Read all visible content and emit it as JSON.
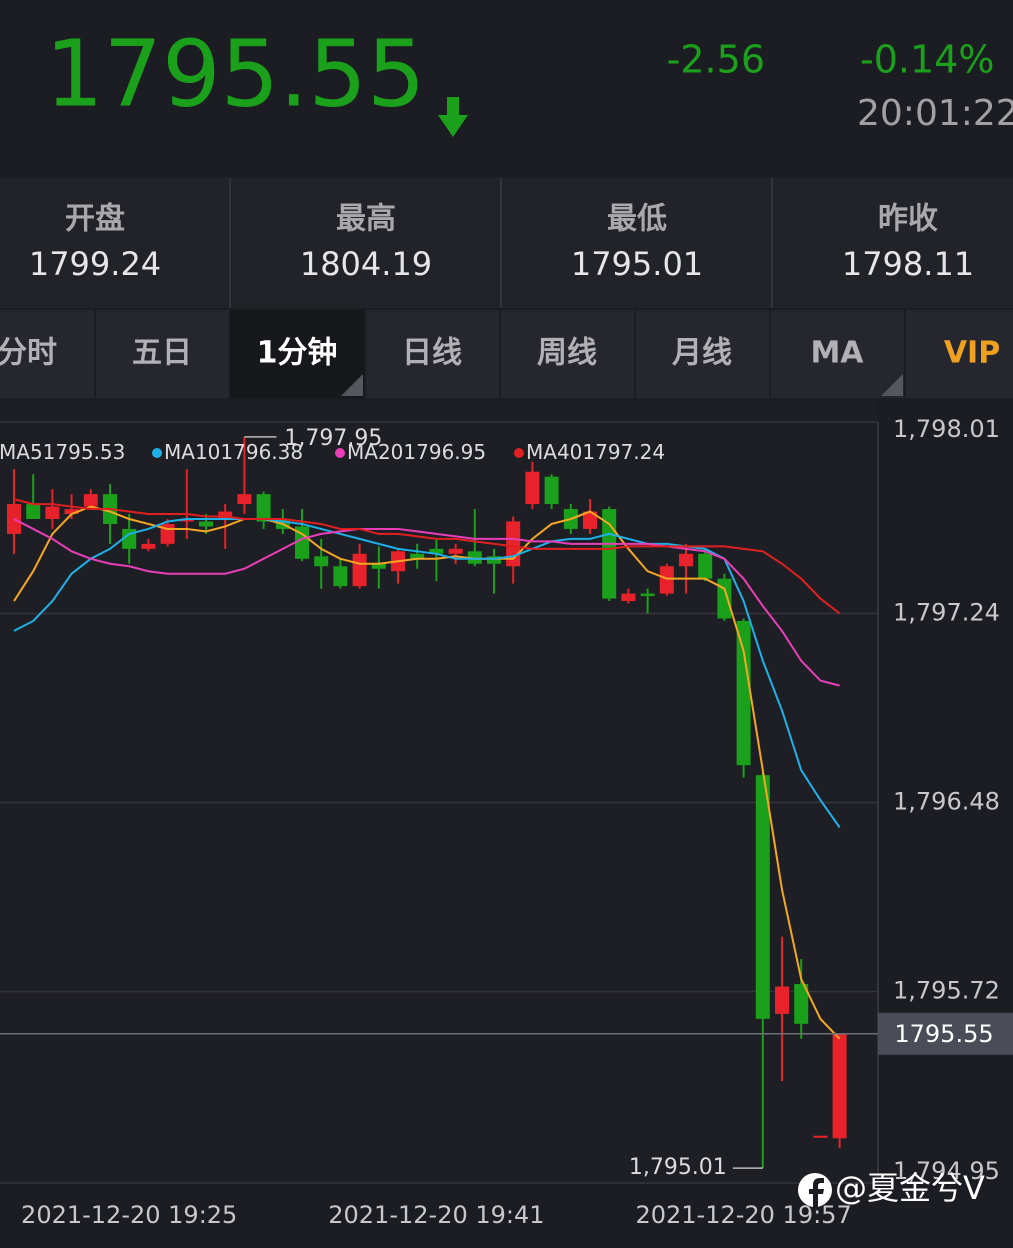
{
  "quote": {
    "price": "1795.55",
    "change": "-2.56",
    "percent": "-0.14%",
    "time": "20:01:22"
  },
  "stats": [
    {
      "label": "开盘",
      "value": "1799.24"
    },
    {
      "label": "最高",
      "value": "1804.19"
    },
    {
      "label": "最低",
      "value": "1795.01"
    },
    {
      "label": "昨收",
      "value": "1798.11"
    }
  ],
  "tabs": [
    "分时",
    "五日",
    "1分钟",
    "日线",
    "周线",
    "月线",
    "MA",
    "VIP"
  ],
  "watermark": "@夏金兮V",
  "chart_data": {
    "type": "candlestick",
    "categories": [
      null,
      null,
      null,
      null,
      null,
      null,
      "2021-12-20 19:25",
      null,
      null,
      null,
      null,
      null,
      null,
      null,
      null,
      null,
      null,
      null,
      null,
      null,
      null,
      null,
      "2021-12-20 19:41",
      null,
      null,
      null,
      null,
      null,
      null,
      null,
      null,
      null,
      null,
      null,
      null,
      null,
      null,
      null,
      "2021-12-20 19:57",
      null,
      null,
      null,
      null,
      null
    ],
    "open": [
      1797.56,
      1797.68,
      1797.62,
      1797.64,
      1797.67,
      1797.72,
      1797.58,
      1797.5,
      1797.52,
      1797.61,
      1797.61,
      1797.62,
      1797.68,
      1797.72,
      1797.62,
      1797.59,
      1797.47,
      1797.43,
      1797.35,
      1797.44,
      1797.41,
      1797.48,
      1797.5,
      1797.48,
      1797.49,
      1797.47,
      1797.43,
      1797.68,
      1797.79,
      1797.66,
      1797.58,
      1797.66,
      1797.29,
      1797.32,
      1797.32,
      1797.43,
      1797.48,
      1797.38,
      1797.21,
      1796.59,
      1795.63,
      1795.75,
      1795.14,
      1795.13
    ],
    "close": [
      1797.68,
      1797.62,
      1797.67,
      1797.66,
      1797.72,
      1797.6,
      1797.5,
      1797.52,
      1797.6,
      1797.62,
      1797.59,
      1797.65,
      1797.72,
      1797.61,
      1797.58,
      1797.46,
      1797.43,
      1797.35,
      1797.48,
      1797.42,
      1797.49,
      1797.46,
      1797.48,
      1797.5,
      1797.44,
      1797.44,
      1797.61,
      1797.81,
      1797.68,
      1797.58,
      1797.65,
      1797.3,
      1797.32,
      1797.31,
      1797.43,
      1797.48,
      1797.38,
      1797.22,
      1796.63,
      1795.61,
      1795.74,
      1795.59,
      1795.14,
      1795.55
    ],
    "high": [
      1797.82,
      1797.8,
      1797.74,
      1797.72,
      1797.74,
      1797.76,
      1797.64,
      1797.54,
      1797.62,
      1797.82,
      1797.64,
      1797.68,
      1797.95,
      1797.73,
      1797.66,
      1797.66,
      1797.54,
      1797.46,
      1797.52,
      1797.51,
      1797.5,
      1797.52,
      1797.54,
      1797.52,
      1797.66,
      1797.5,
      1797.63,
      1797.85,
      1797.8,
      1797.68,
      1797.7,
      1797.67,
      1797.34,
      1797.34,
      1797.44,
      1797.52,
      1797.5,
      1797.4,
      1797.22,
      1796.6,
      1795.94,
      1795.85,
      1795.14,
      1795.55
    ],
    "low": [
      1797.48,
      1797.62,
      1797.58,
      1797.62,
      1797.66,
      1797.52,
      1797.44,
      1797.49,
      1797.51,
      1797.54,
      1797.56,
      1797.5,
      1797.64,
      1797.58,
      1797.56,
      1797.45,
      1797.34,
      1797.34,
      1797.34,
      1797.34,
      1797.36,
      1797.42,
      1797.37,
      1797.44,
      1797.43,
      1797.32,
      1797.36,
      1797.66,
      1797.66,
      1797.56,
      1797.56,
      1797.29,
      1797.28,
      1797.24,
      1797.31,
      1797.32,
      1797.37,
      1797.21,
      1796.58,
      1795.01,
      1795.36,
      1795.53,
      1795.14,
      1795.09
    ],
    "up_color": "#e8222a",
    "down_color": "#1aa01a",
    "series": [
      {
        "name": "MA5",
        "color": "#f5a623",
        "values": [
          1797.29,
          1797.41,
          1797.56,
          1797.64,
          1797.67,
          1797.65,
          1797.62,
          1797.6,
          1797.58,
          1797.58,
          1797.57,
          1797.59,
          1797.62,
          1797.62,
          1797.6,
          1797.56,
          1797.5,
          1797.46,
          1797.44,
          1797.44,
          1797.45,
          1797.46,
          1797.46,
          1797.47,
          1797.46,
          1797.46,
          1797.46,
          1797.54,
          1797.6,
          1797.62,
          1797.65,
          1797.6,
          1797.5,
          1797.41,
          1797.38,
          1797.38,
          1797.38,
          1797.34,
          1797.09,
          1796.61,
          1796.13,
          1795.77,
          1795.61,
          1795.53
        ]
      },
      {
        "name": "MA10",
        "color": "#1fb0e8",
        "values": [
          1797.17,
          1797.21,
          1797.29,
          1797.4,
          1797.46,
          1797.5,
          1797.56,
          1797.58,
          1797.61,
          1797.62,
          1797.62,
          1797.62,
          1797.62,
          1797.62,
          1797.61,
          1797.6,
          1797.58,
          1797.56,
          1797.54,
          1797.52,
          1797.5,
          1797.49,
          1797.48,
          1797.46,
          1797.46,
          1797.46,
          1797.47,
          1797.5,
          1797.53,
          1797.54,
          1797.54,
          1797.56,
          1797.54,
          1797.52,
          1797.52,
          1797.51,
          1797.5,
          1797.46,
          1797.29,
          1797.05,
          1796.85,
          1796.61,
          1796.49,
          1796.38
        ]
      },
      {
        "name": "MA20",
        "color": "#e83fb8",
        "values": [
          1797.62,
          1797.58,
          1797.54,
          1797.49,
          1797.46,
          1797.44,
          1797.43,
          1797.41,
          1797.4,
          1797.4,
          1797.4,
          1797.4,
          1797.42,
          1797.46,
          1797.5,
          1797.54,
          1797.56,
          1797.57,
          1797.58,
          1797.58,
          1797.58,
          1797.57,
          1797.56,
          1797.55,
          1797.54,
          1797.54,
          1797.54,
          1797.53,
          1797.53,
          1797.52,
          1797.52,
          1797.52,
          1797.52,
          1797.52,
          1797.51,
          1797.5,
          1797.49,
          1797.46,
          1797.38,
          1797.27,
          1797.17,
          1797.05,
          1796.97,
          1796.95
        ]
      },
      {
        "name": "MA40",
        "color": "#e02020",
        "values": [
          1797.7,
          1797.68,
          1797.68,
          1797.67,
          1797.66,
          1797.66,
          1797.65,
          1797.64,
          1797.64,
          1797.64,
          1797.63,
          1797.63,
          1797.62,
          1797.62,
          1797.62,
          1797.61,
          1797.6,
          1797.58,
          1797.58,
          1797.56,
          1797.56,
          1797.55,
          1797.54,
          1797.54,
          1797.53,
          1797.52,
          1797.51,
          1797.5,
          1797.5,
          1797.5,
          1797.5,
          1797.5,
          1797.51,
          1797.51,
          1797.51,
          1797.51,
          1797.51,
          1797.51,
          1797.5,
          1797.49,
          1797.44,
          1797.38,
          1797.3,
          1797.24
        ]
      }
    ],
    "ylim": [
      1794.95,
      1798.01
    ],
    "yticks": [
      {
        "value": 1798.01,
        "label": "1,798.01"
      },
      {
        "value": 1797.24,
        "label": "1,797.24"
      },
      {
        "value": 1796.48,
        "label": "1,796.48"
      },
      {
        "value": 1795.72,
        "label": "1,795.72"
      },
      {
        "value": 1794.95,
        "label": "1,794.95"
      }
    ],
    "grid": true,
    "last_price": 1795.55,
    "high_label": {
      "value": 1797.95,
      "label": "1,797.95"
    },
    "low_label": {
      "value": 1795.01,
      "label": "1,795.01"
    }
  }
}
